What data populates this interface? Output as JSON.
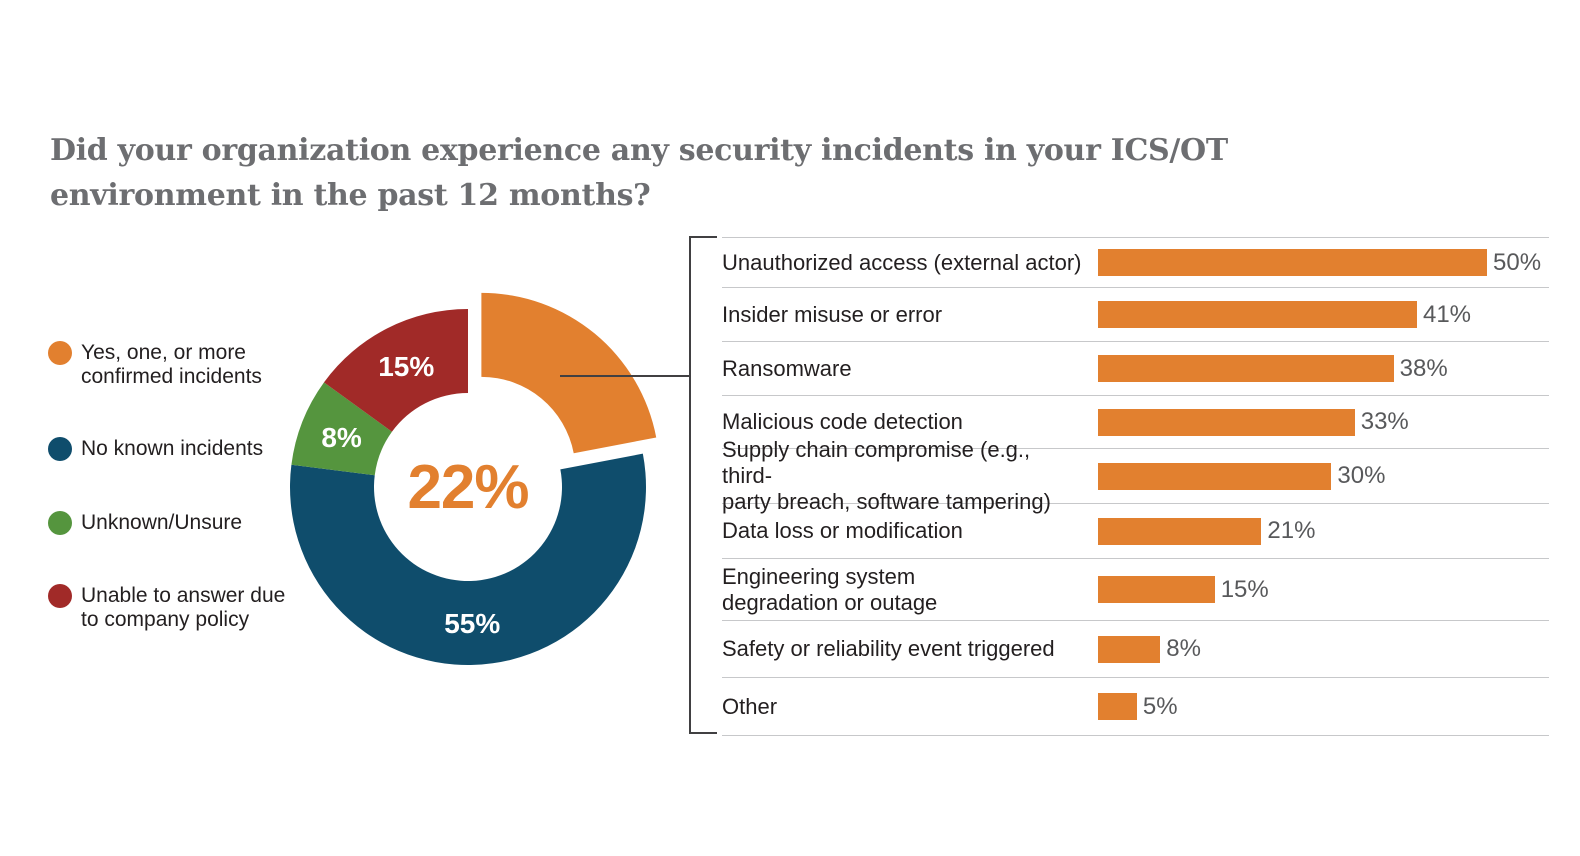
{
  "title": {
    "line1": "Did your organization experience any security incidents in your ICS/OT",
    "line2": "environment in the past 12 months?"
  },
  "colors": {
    "accent_orange": "#e2802f",
    "dark_blue": "#0f4d6c",
    "green": "#55953e",
    "dark_red": "#a12a28",
    "title_gray": "#6d6e71",
    "separator_gray": "#c7c8ca",
    "connector_dark": "#414042",
    "value_label_gray": "#58595b",
    "text_dark": "#231f20"
  },
  "legend": {
    "items": [
      {
        "label": "Yes, one, or more\nconfirmed incidents",
        "color": "#e2802f"
      },
      {
        "label": "No known incidents",
        "color": "#0f4d6c"
      },
      {
        "label": "Unknown/Unsure",
        "color": "#55953e"
      },
      {
        "label": "Unable to answer due\nto company policy",
        "color": "#a12a28"
      }
    ]
  },
  "chart_data": [
    {
      "type": "pie",
      "subtype": "donut",
      "center_label": "22%",
      "value_suffix": "%",
      "legend_position": "left",
      "slices": [
        {
          "label": "Yes, one, or more confirmed incidents",
          "value": 22,
          "color": "#e2802f",
          "exploded": true,
          "show_value_on_slice": false
        },
        {
          "label": "No known incidents",
          "value": 55,
          "color": "#0f4d6c",
          "exploded": false,
          "show_value_on_slice": true
        },
        {
          "label": "Unknown/Unsure",
          "value": 8,
          "color": "#55953e",
          "exploded": false,
          "show_value_on_slice": true
        },
        {
          "label": "Unable to answer due to company policy",
          "value": 15,
          "color": "#a12a28",
          "exploded": false,
          "show_value_on_slice": true
        }
      ]
    },
    {
      "type": "bar",
      "orientation": "horizontal",
      "bar_color": "#e2802f",
      "value_suffix": "%",
      "xlim": [
        0,
        52
      ],
      "grid": "row-separators",
      "categories": [
        "Unauthorized access (external actor)",
        "Insider misuse or error",
        "Ransomware",
        "Malicious code detection",
        "Supply chain compromise (e.g., third-\nparty breach, software tampering)",
        "Data loss or modification",
        "Engineering system\ndegradation or outage",
        "Safety or reliability event triggered",
        "Other"
      ],
      "values": [
        50,
        41,
        38,
        33,
        30,
        21,
        15,
        8,
        5
      ]
    }
  ]
}
